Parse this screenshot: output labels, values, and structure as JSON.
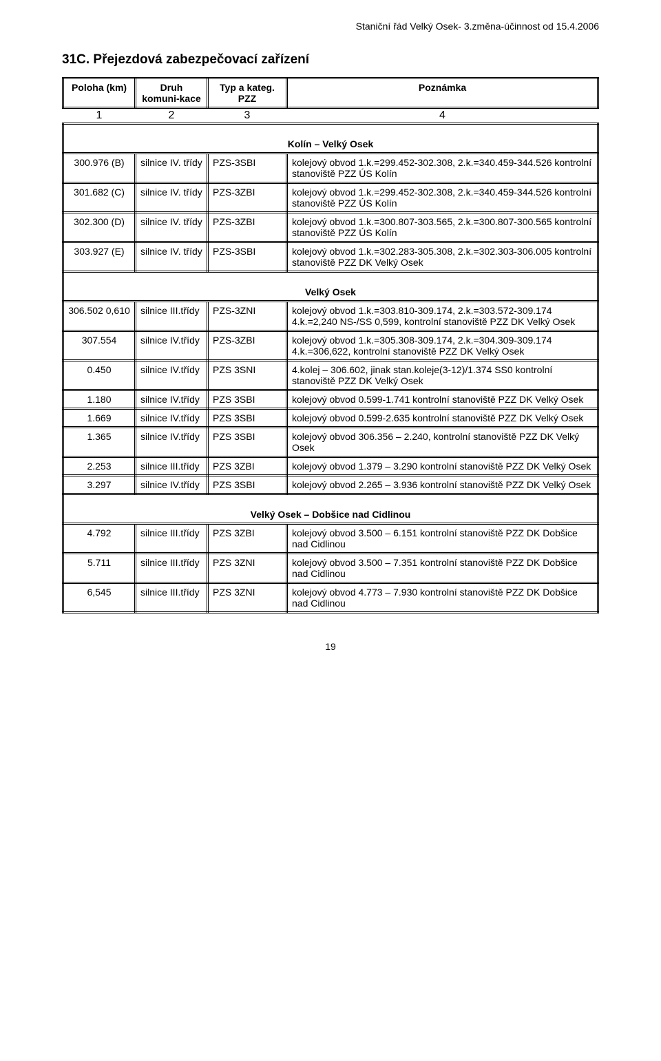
{
  "header_right": "Staniční řád Velký Osek- 3.změna-účinnost od 15.4.2006",
  "section_number": "31C. Přejezdová zabezpečovací zařízení",
  "columns": {
    "c1": "Poloha (km)",
    "c2": "Druh komuni-kace",
    "c3": "Typ a kateg. PZZ",
    "c4": "Poznámka"
  },
  "numrow": {
    "n1": "1",
    "n2": "2",
    "n3": "3",
    "n4": "4"
  },
  "groups": [
    {
      "title": "Kolín – Velký Osek",
      "rows": [
        {
          "c1": "300.976 (B)",
          "c2": "silnice IV. třídy",
          "c3": "PZS-3SBI",
          "c4": "kolejový obvod 1.k.=299.452-302.308, 2.k.=340.459-344.526 kontrolní stanoviště PZZ ÚS Kolín"
        },
        {
          "c1": "301.682 (C)",
          "c2": "silnice IV. třídy",
          "c3": "PZS-3ZBI",
          "c4": "kolejový obvod 1.k.=299.452-302.308, 2.k.=340.459-344.526 kontrolní stanoviště PZZ ÚS Kolín"
        },
        {
          "c1": "302.300 (D)",
          "c2": "silnice IV. třídy",
          "c3": "PZS-3ZBI",
          "c4": "kolejový obvod 1.k.=300.807-303.565, 2.k.=300.807-300.565 kontrolní stanoviště PZZ ÚS Kolín"
        },
        {
          "c1": "303.927 (E)",
          "c2": "silnice IV. třídy",
          "c3": "PZS-3SBI",
          "c4": "kolejový obvod 1.k.=302.283-305.308, 2.k.=302.303-306.005 kontrolní stanoviště PZZ DK Velký Osek"
        }
      ]
    },
    {
      "title": "Velký Osek",
      "rows": [
        {
          "c1": "306.502 0,610",
          "c2": "silnice III.třídy",
          "c3": "PZS-3ZNI",
          "c4": "kolejový obvod 1.k.=303.810-309.174, 2.k.=303.572-309.174 4.k.=2,240 NS-/SS 0,599, kontrolní stanoviště PZZ DK Velký Osek"
        },
        {
          "c1": "307.554",
          "c2": "silnice IV.třídy",
          "c3": "PZS-3ZBI",
          "c4": "kolejový obvod 1.k.=305.308-309.174, 2.k.=304.309-309.174 4.k.=306,622, kontrolní stanoviště PZZ DK Velký Osek"
        },
        {
          "c1": "0.450",
          "c2": "silnice IV.třídy",
          "c3": "PZS 3SNI",
          "c4": "4.kolej – 306.602, jinak stan.koleje(3-12)/1.374 SS0 kontrolní stanoviště PZZ DK Velký Osek"
        },
        {
          "c1": "1.180",
          "c2": "silnice IV.třídy",
          "c3": "PZS 3SBI",
          "c4": "kolejový obvod 0.599-1.741 kontrolní stanoviště PZZ DK Velký Osek"
        },
        {
          "c1": "1.669",
          "c2": "silnice IV.třídy",
          "c3": "PZS 3SBI",
          "c4": "kolejový obvod 0.599-2.635 kontrolní stanoviště PZZ DK Velký Osek"
        },
        {
          "c1": "1.365",
          "c2": "silnice IV.třídy",
          "c3": "PZS 3SBI",
          "c4": "kolejový obvod 306.356 – 2.240, kontrolní stanoviště PZZ DK Velký Osek"
        },
        {
          "c1": "2.253",
          "c2": "silnice III.třídy",
          "c3": "PZS 3ZBI",
          "c4": "kolejový obvod 1.379 – 3.290 kontrolní stanoviště PZZ DK Velký Osek"
        },
        {
          "c1": "3.297",
          "c2": "silnice IV.třídy",
          "c3": "PZS 3SBI",
          "c4": "kolejový obvod 2.265 – 3.936 kontrolní stanoviště PZZ DK Velký Osek"
        }
      ]
    },
    {
      "title": "Velký Osek – Dobšice nad Cidlinou",
      "rows": [
        {
          "c1": "4.792",
          "c2": "silnice III.třídy",
          "c3": "PZS 3ZBI",
          "c4": "kolejový obvod 3.500 – 6.151 kontrolní stanoviště PZZ DK Dobšice nad Cidlinou"
        },
        {
          "c1": "5.711",
          "c2": "silnice III.třídy",
          "c3": "PZS 3ZNI",
          "c4": "kolejový obvod 3.500 – 7.351 kontrolní stanoviště PZZ DK Dobšice nad Cidlinou"
        },
        {
          "c1": "6,545",
          "c2": "silnice III.třídy",
          "c3": "PZS 3ZNI",
          "c4": "kolejový obvod 4.773 – 7.930 kontrolní stanoviště PZZ DK Dobšice nad Cidlinou"
        }
      ]
    }
  ],
  "page_number": "19",
  "styling": {
    "font_family": "Arial",
    "text_color": "#000000",
    "background_color": "#ffffff",
    "border_color": "#000000",
    "header_font_size_pt": 14,
    "body_font_size_pt": 11,
    "section_title_font_size_pt": 13
  }
}
